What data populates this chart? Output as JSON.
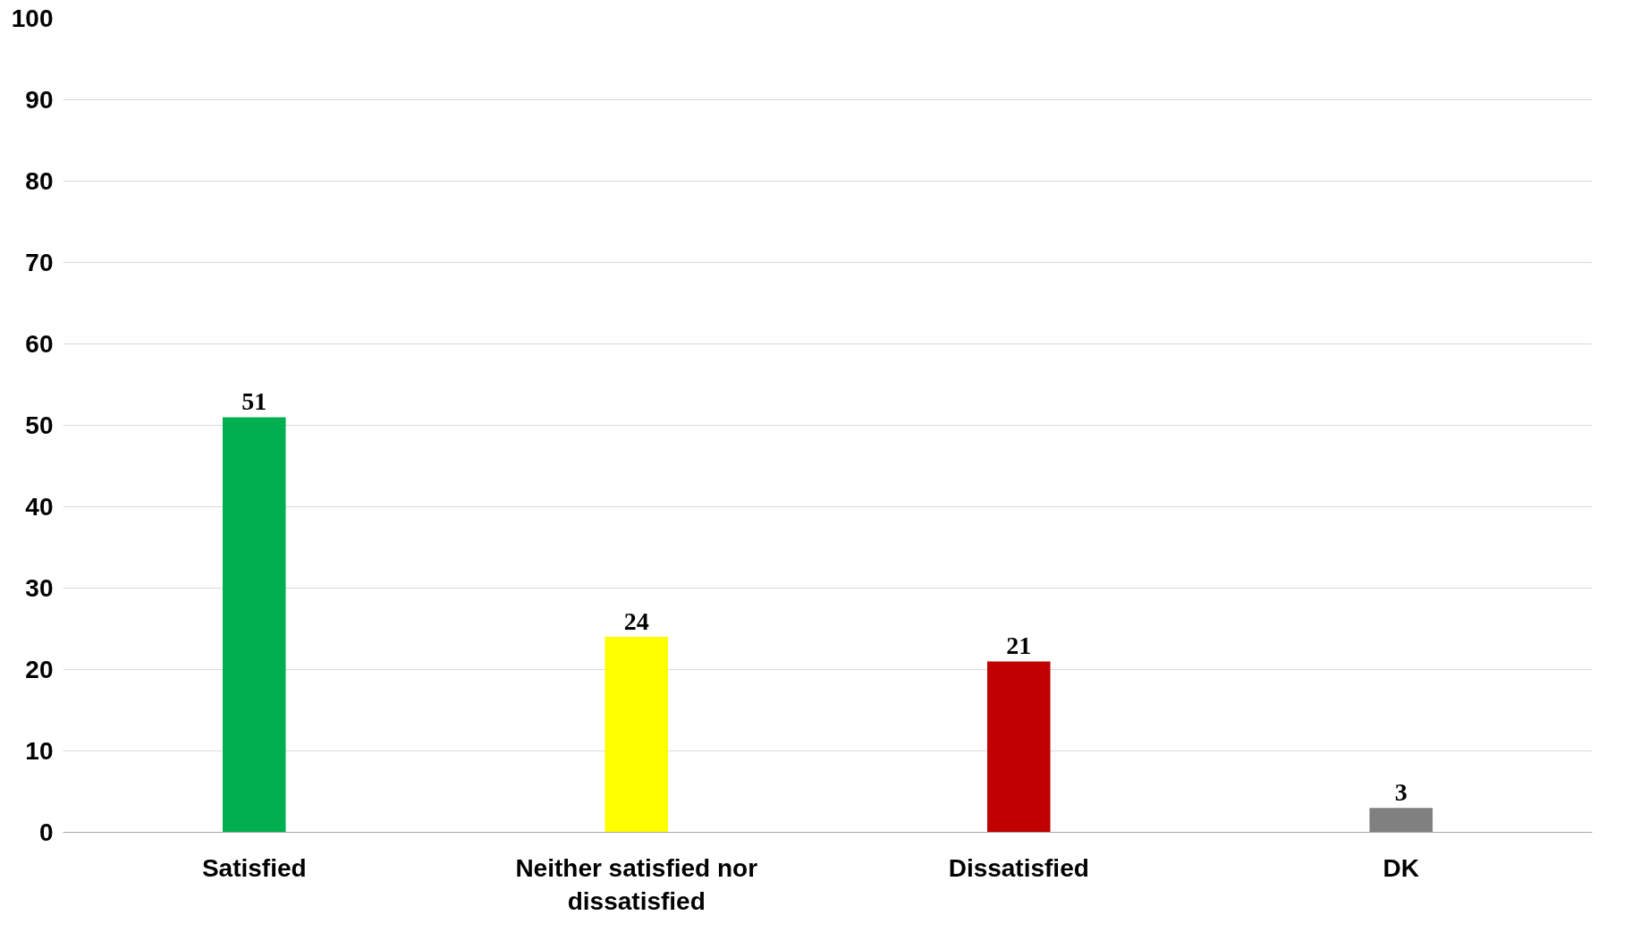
{
  "chart_data": {
    "type": "bar",
    "categories": [
      "Satisfied",
      "Neither satisfied nor dissatisfied",
      "Dissatisfied",
      "DK"
    ],
    "values": [
      51,
      24,
      21,
      3
    ],
    "colors": [
      "#00b050",
      "#ffff00",
      "#c00000",
      "#808080"
    ],
    "ylim": [
      0,
      100
    ],
    "yticks": [
      0,
      10,
      20,
      30,
      40,
      50,
      60,
      70,
      80,
      90,
      100
    ],
    "grid": "y",
    "data_labels": true
  }
}
